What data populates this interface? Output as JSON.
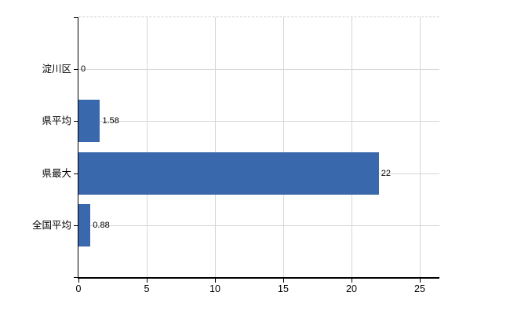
{
  "chart": {
    "background_color": "#ffffff",
    "bar_color": "#3a68ac",
    "grid_color": "#d3d9d3",
    "axis_color": "#000000",
    "top_border_color": "#cfd2cf",
    "text_color": "#000000"
  },
  "chart_data": {
    "type": "bar",
    "orientation": "horizontal",
    "title": "",
    "categories": [
      "淀川区",
      "県平均",
      "県最大",
      "全国平均"
    ],
    "values": [
      0,
      1.58,
      22,
      0.88
    ],
    "value_labels": [
      "0",
      "1.58",
      "22",
      "0.88"
    ],
    "xlim": [
      0,
      25
    ],
    "x_ticks": [
      0,
      5,
      10,
      15,
      20,
      25
    ],
    "x_tick_labels": [
      "0",
      "5",
      "10",
      "15",
      "20",
      "25"
    ],
    "grid": true,
    "legend": false
  }
}
